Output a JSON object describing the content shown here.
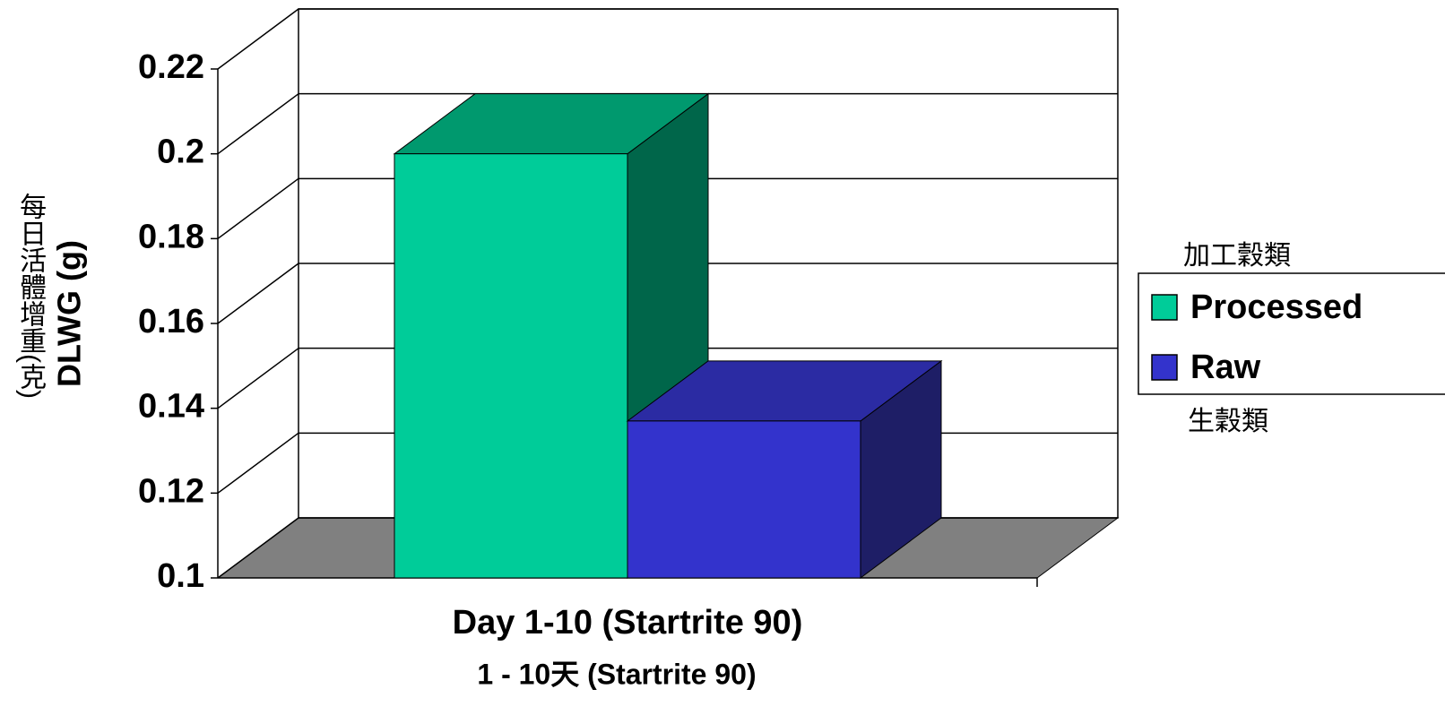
{
  "chart_data": {
    "type": "bar3d",
    "categories": [
      "Day 1-10 (Startrite 90)"
    ],
    "category_sublabels": [
      "1 - 10天 (Startrite 90)"
    ],
    "ylabel": "DLWG (g)",
    "ylabel_zh": "每日活體增重(克)",
    "series": [
      {
        "name": "Processed",
        "note": "加工穀類",
        "color": "#00cc99",
        "top": "#00996e",
        "side": "#00664a",
        "values": [
          0.2
        ]
      },
      {
        "name": "Raw",
        "note": "生穀類",
        "color": "#3333cc",
        "top": "#2b2ba3",
        "side": "#1e1e66",
        "values": [
          0.137
        ]
      }
    ],
    "ylim": [
      0.1,
      0.22
    ],
    "yticks": [
      0.1,
      0.12,
      0.14,
      0.16,
      0.18,
      0.2,
      0.22
    ],
    "grid": true,
    "floor_color": "#808080",
    "legend": "right"
  }
}
